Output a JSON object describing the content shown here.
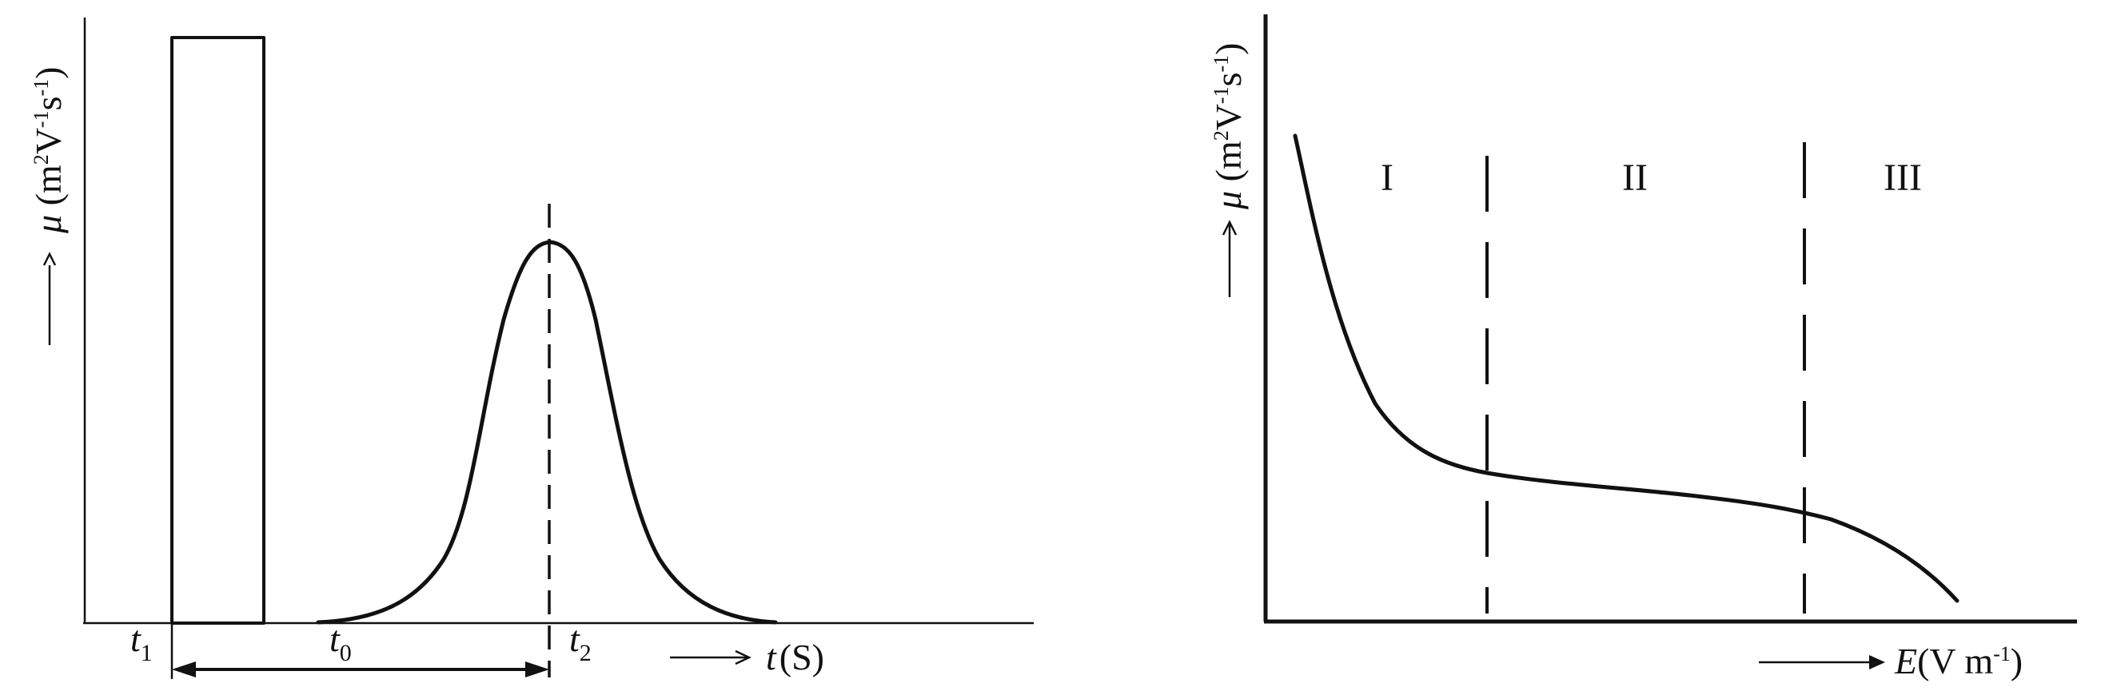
{
  "left_panel": {
    "y_axis_label": {
      "mu": "μ",
      "unit_open": " (m",
      "unit_exp1": "2",
      "unit_mid": "V",
      "unit_exp2": "-1",
      "unit_mid2": "s",
      "unit_exp3": "-1",
      "unit_close": ")"
    },
    "x_axis_label": {
      "var": "t",
      "unit": "(S)"
    },
    "t1": {
      "var": "t",
      "sub": "1"
    },
    "t0": {
      "var": "t",
      "sub": "0"
    },
    "t2": {
      "var": "t",
      "sub": "2"
    }
  },
  "right_panel": {
    "y_axis_label": {
      "mu": "μ",
      "unit_open": " (m",
      "unit_exp1": "2",
      "unit_mid": "V",
      "unit_exp2": "-1",
      "unit_mid2": "s",
      "unit_exp3": "-1",
      "unit_close": ")"
    },
    "x_axis_label": {
      "var": "E",
      "unit_open": "(V m",
      "unit_exp": "-1",
      "unit_close": ")"
    },
    "regions": [
      "I",
      "II",
      "III"
    ]
  }
}
